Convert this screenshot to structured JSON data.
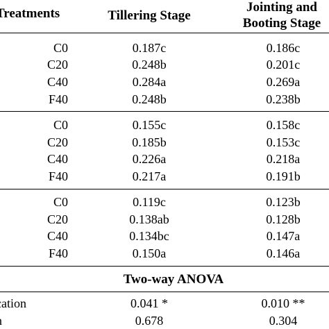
{
  "headers": {
    "treatments": "Treatments",
    "tillering": "Tillering Stage",
    "jointing_line1": "Jointing and",
    "jointing_line2": "Booting Stage"
  },
  "groups": [
    {
      "rows": [
        {
          "treatment": "C0",
          "tillering": "0.187c",
          "jointing": "0.186c"
        },
        {
          "treatment": "C20",
          "tillering": "0.248b",
          "jointing": "0.201c"
        },
        {
          "treatment": "C40",
          "tillering": "0.284a",
          "jointing": "0.269a"
        },
        {
          "treatment": "F40",
          "tillering": "0.248b",
          "jointing": "0.238b"
        }
      ]
    },
    {
      "rows": [
        {
          "treatment": "C0",
          "tillering": "0.155c",
          "jointing": "0.158c"
        },
        {
          "treatment": "C20",
          "tillering": "0.185b",
          "jointing": "0.153c"
        },
        {
          "treatment": "C40",
          "tillering": "0.226a",
          "jointing": "0.218a"
        },
        {
          "treatment": "F40",
          "tillering": "0.217a",
          "jointing": "0.191b"
        }
      ]
    },
    {
      "rows": [
        {
          "treatment": "C0",
          "tillering": "0.119c",
          "jointing": "0.123b"
        },
        {
          "treatment": "C20",
          "tillering": "0.138ab",
          "jointing": "0.128b"
        },
        {
          "treatment": "C40",
          "tillering": "0.134bc",
          "jointing": "0.147a"
        },
        {
          "treatment": "F40",
          "tillering": "0.150a",
          "jointing": "0.146a"
        }
      ]
    }
  ],
  "anova": {
    "title": "Two-way ANOVA",
    "rows": [
      {
        "label": "cation",
        "tillering": "0.041 *",
        "jointing": "0.010 **"
      },
      {
        "label": "n",
        "tillering": "0.678",
        "jointing": "0.304"
      }
    ]
  }
}
